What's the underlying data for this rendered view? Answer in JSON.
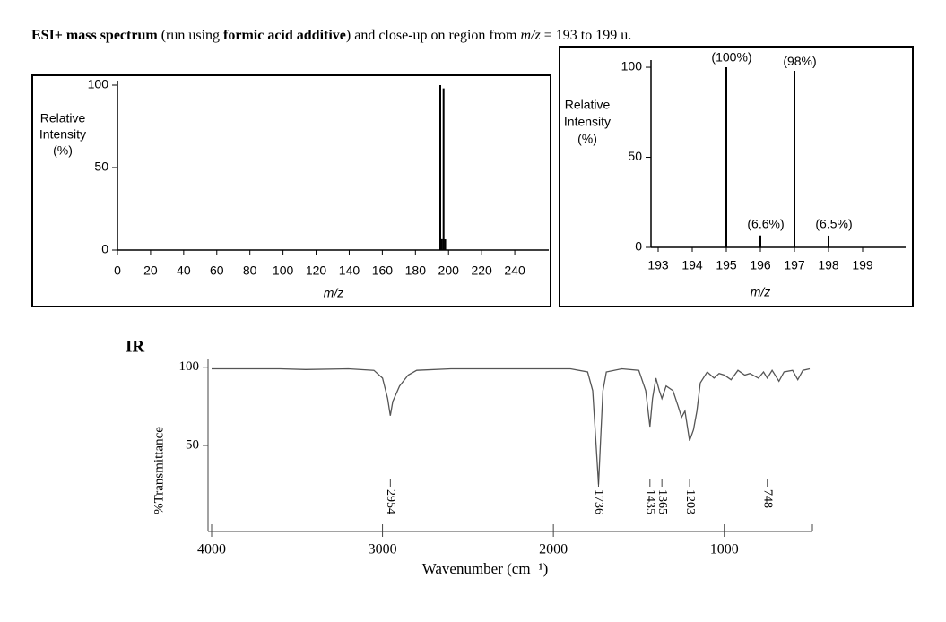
{
  "caption": [
    {
      "text": "ESI+ mass spectrum",
      "style": "bold"
    },
    {
      "text": " (run using ",
      "style": "normal"
    },
    {
      "text": "formic acid additive",
      "style": "bold"
    },
    {
      "text": ") and close-up on region from ",
      "style": "normal"
    },
    {
      "text": "m/z",
      "style": "italic"
    },
    {
      "text": " = 193 to 199 u.",
      "style": "normal"
    }
  ],
  "chart_data": [
    {
      "type": "bar",
      "x": [
        195,
        196,
        197,
        198
      ],
      "values": [
        100,
        6.6,
        98,
        6.5
      ],
      "color": "#000000",
      "xlabel": "m/z",
      "ylabel": [
        "Relative",
        "Intensity",
        "(%)"
      ],
      "xlim": [
        0,
        260
      ],
      "xticks": [
        0,
        20,
        40,
        60,
        80,
        100,
        120,
        140,
        160,
        180,
        200,
        220,
        240
      ],
      "ylim": [
        0,
        100
      ],
      "yticks": [
        0,
        50,
        100
      ]
    },
    {
      "type": "bar",
      "x": [
        195,
        196,
        197,
        198
      ],
      "values": [
        100,
        6.6,
        98,
        6.5
      ],
      "value_labels": [
        "(100%)",
        "(6.6%)",
        "(98%)",
        "(6.5%)"
      ],
      "color": "#000000",
      "xlabel": "m/z",
      "ylabel": [
        "Relative",
        "Intensity",
        "(%)"
      ],
      "xlim": [
        193,
        200
      ],
      "xticks": [
        193,
        194,
        195,
        196,
        197,
        198,
        199
      ],
      "ylim": [
        0,
        104
      ],
      "yticks": [
        0,
        50,
        100
      ]
    },
    {
      "type": "line",
      "title": "IR",
      "color": "#555555",
      "xlabel": "Wavenumber (cm⁻¹)",
      "ylabel": "%Transmittance",
      "x": [
        4000,
        3600,
        3450,
        3200,
        3050,
        3000,
        2970,
        2954,
        2940,
        2900,
        2850,
        2800,
        2600,
        2200,
        1900,
        1800,
        1770,
        1750,
        1736,
        1725,
        1710,
        1690,
        1600,
        1500,
        1460,
        1435,
        1420,
        1400,
        1380,
        1365,
        1340,
        1300,
        1270,
        1250,
        1230,
        1203,
        1180,
        1160,
        1140,
        1100,
        1060,
        1030,
        1000,
        960,
        920,
        880,
        850,
        800,
        770,
        748,
        720,
        680,
        650,
        600,
        570,
        540,
        500
      ],
      "values": [
        99,
        99,
        98.5,
        99,
        98,
        93,
        80,
        69,
        78,
        88,
        95,
        98,
        99,
        99,
        99,
        97,
        85,
        50,
        25,
        50,
        85,
        97,
        99,
        98,
        85,
        62,
        80,
        93,
        85,
        80,
        88,
        85,
        75,
        68,
        72,
        53,
        60,
        72,
        90,
        97,
        93,
        96,
        95,
        92,
        98,
        95,
        96,
        93,
        97,
        93,
        98,
        91,
        97,
        98,
        92,
        98,
        99
      ],
      "xlim": [
        4000,
        500
      ],
      "xticks": [
        4000,
        3000,
        2000,
        1000
      ],
      "ylim": [
        -5,
        105
      ],
      "yticks": [
        50,
        100
      ],
      "annotations": [
        {
          "x": 2954,
          "label": "2954"
        },
        {
          "x": 1736,
          "label": "1736"
        },
        {
          "x": 1435,
          "label": "1435"
        },
        {
          "x": 1365,
          "label": "1365"
        },
        {
          "x": 1203,
          "label": "1203"
        },
        {
          "x": 748,
          "label": "748"
        }
      ]
    }
  ]
}
